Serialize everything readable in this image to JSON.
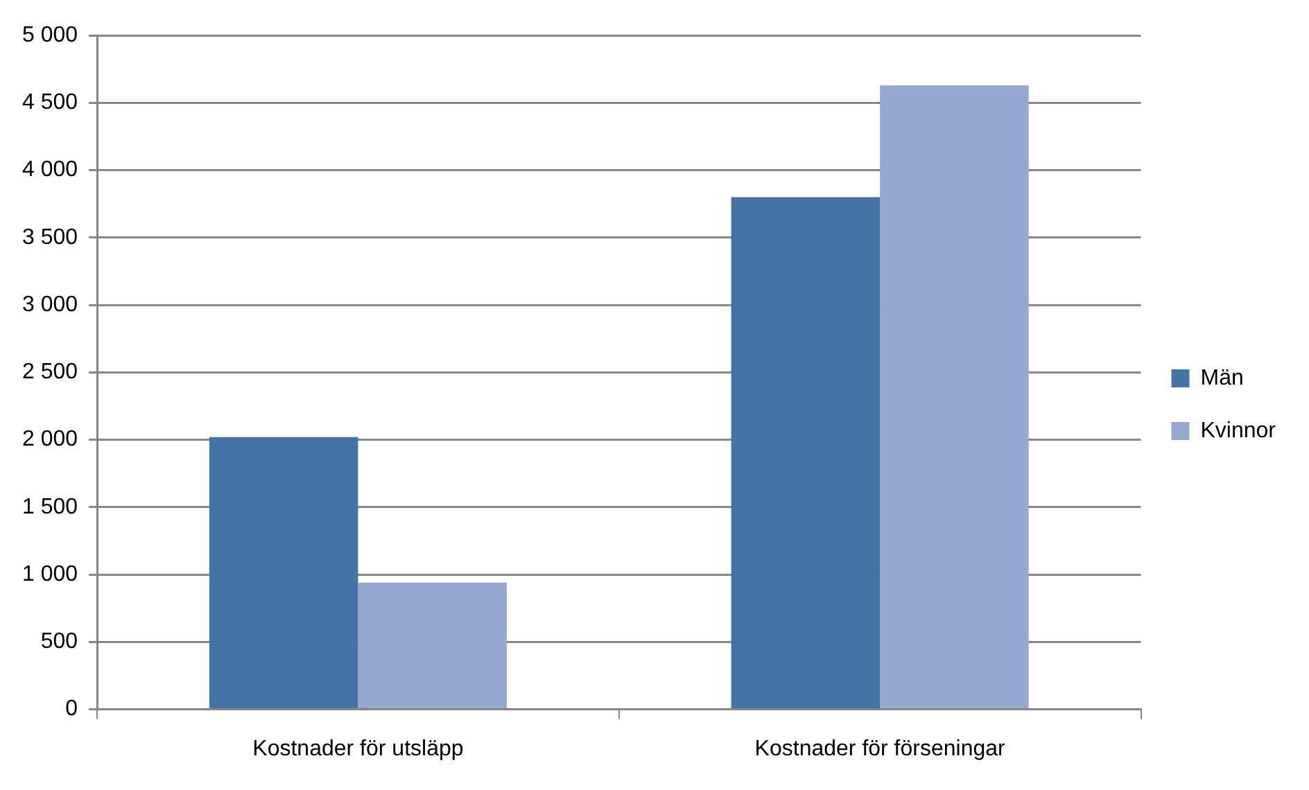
{
  "chart_data": {
    "type": "bar",
    "categories": [
      "Kostnader för utsläpp",
      "Kostnader för förseningar"
    ],
    "series": [
      {
        "name": "Män",
        "color": "#4573a7",
        "values": [
          2020,
          3800
        ]
      },
      {
        "name": "Kvinnor",
        "color": "#95a9d0",
        "values": [
          940,
          4630
        ]
      }
    ],
    "ylim": [
      0,
      5000
    ],
    "yticks": [
      {
        "value": 0,
        "label": "0"
      },
      {
        "value": 500,
        "label": "500"
      },
      {
        "value": 1000,
        "label": "1 000"
      },
      {
        "value": 1500,
        "label": "1 500"
      },
      {
        "value": 2000,
        "label": "2 000"
      },
      {
        "value": 2500,
        "label": "2 500"
      },
      {
        "value": 3000,
        "label": "3 000"
      },
      {
        "value": 3500,
        "label": "3 500"
      },
      {
        "value": 4000,
        "label": "4 000"
      },
      {
        "value": 4500,
        "label": "4 500"
      },
      {
        "value": 5000,
        "label": "5 000"
      }
    ],
    "grid": "y",
    "legend": "right"
  }
}
